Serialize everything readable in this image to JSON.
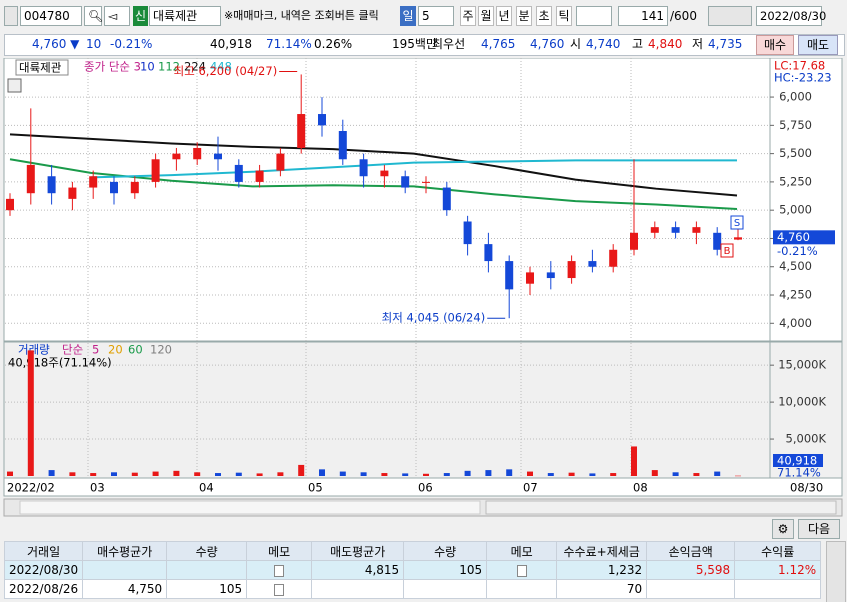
{
  "toolbar": {
    "code": "004780",
    "badge": "신",
    "name": "대륙제관",
    "notice": "※매매마크, 내역은 조회버튼 클릭",
    "period": "일",
    "period_n": "5",
    "units": [
      "주",
      "월",
      "년",
      "분",
      "초",
      "틱"
    ],
    "count": "141",
    "count_max": "/600",
    "date": "2022/08/30"
  },
  "quote": {
    "price": "4,760 ▼",
    "change": "10",
    "change_pct": "-0.21%",
    "volume": "40,918",
    "volume_pct": "71.14%",
    "turnover": "0.26%",
    "amount": "195백만",
    "best": "최우선",
    "ask": "4,765",
    "bid": "4,760",
    "open_label": "시",
    "open": "4,740",
    "high_label": "고",
    "high": "4,840",
    "low_label": "저",
    "low": "4,735",
    "buy": "매수",
    "sell": "매도"
  },
  "price_chart": {
    "title": "대륙제관",
    "legend": [
      {
        "text": "종가 단순 3",
        "color": "#c0208a"
      },
      {
        "text": "10",
        "color": "#1030c8"
      },
      {
        "text": "112",
        "color": "#1a9a4a"
      },
      {
        "text": "224",
        "color": "#111111"
      },
      {
        "text": "448",
        "color": "#20b8d0"
      }
    ],
    "ylim": [
      3870,
      6310
    ],
    "yticks": [
      {
        "value": 4000,
        "label": "4,000"
      },
      {
        "value": 4250,
        "label": "4,250"
      },
      {
        "value": 4500,
        "label": "4,500"
      },
      {
        "value": 4750,
        "label": "4,750"
      },
      {
        "value": 5000,
        "label": "5,000"
      },
      {
        "value": 5250,
        "label": "5,250"
      },
      {
        "value": 5500,
        "label": "5,500"
      },
      {
        "value": 5750,
        "label": "5,750"
      },
      {
        "value": 6000,
        "label": "6,000"
      }
    ],
    "candles": [
      [
        5000,
        5150,
        4950,
        5100
      ],
      [
        5150,
        5900,
        5050,
        5400
      ],
      [
        5300,
        5400,
        5050,
        5150
      ],
      [
        5100,
        5250,
        5000,
        5200
      ],
      [
        5200,
        5350,
        5100,
        5300
      ],
      [
        5250,
        5300,
        5050,
        5150
      ],
      [
        5150,
        5300,
        5100,
        5250
      ],
      [
        5250,
        5500,
        5200,
        5450
      ],
      [
        5450,
        5550,
        5350,
        5500
      ],
      [
        5450,
        5600,
        5400,
        5550
      ],
      [
        5500,
        5650,
        5350,
        5450
      ],
      [
        5400,
        5450,
        5200,
        5250
      ],
      [
        5250,
        5400,
        5200,
        5350
      ],
      [
        5350,
        5550,
        5300,
        5500
      ],
      [
        5550,
        6200,
        5500,
        5850
      ],
      [
        5850,
        6000,
        5650,
        5750
      ],
      [
        5700,
        5800,
        5400,
        5450
      ],
      [
        5450,
        5500,
        5200,
        5300
      ],
      [
        5300,
        5400,
        5200,
        5350
      ],
      [
        5300,
        5350,
        5150,
        5200
      ],
      [
        5250,
        5300,
        5150,
        5250
      ],
      [
        5200,
        5250,
        4950,
        5000
      ],
      [
        4900,
        4950,
        4600,
        4700
      ],
      [
        4700,
        4800,
        4450,
        4550
      ],
      [
        4550,
        4600,
        4045,
        4300
      ],
      [
        4350,
        4500,
        4250,
        4450
      ],
      [
        4450,
        4550,
        4300,
        4400
      ],
      [
        4400,
        4600,
        4350,
        4550
      ],
      [
        4550,
        4650,
        4450,
        4500
      ],
      [
        4500,
        4700,
        4450,
        4650
      ],
      [
        4650,
        5450,
        4600,
        4800
      ],
      [
        4800,
        4900,
        4750,
        4850
      ],
      [
        4850,
        4900,
        4750,
        4800
      ],
      [
        4800,
        4900,
        4700,
        4850
      ],
      [
        4800,
        4850,
        4600,
        4650
      ],
      [
        4740,
        4840,
        4735,
        4760
      ]
    ],
    "ma": [
      {
        "color": "#111111",
        "values": [
          5670,
          5630,
          5590,
          5560,
          5540,
          5500,
          5390,
          5270,
          5190,
          5130
        ]
      },
      {
        "color": "#1a9a4a",
        "values": [
          5450,
          5330,
          5260,
          5210,
          5220,
          5210,
          5140,
          5080,
          5050,
          5010
        ]
      },
      {
        "color": "#20b8d0",
        "values": [
          null,
          5290,
          5310,
          5340,
          5380,
          5420,
          5430,
          5440,
          5440,
          5440
        ]
      }
    ],
    "high_note": "최고 6,200 (04/27)",
    "low_note": "최저 4,045 (06/24)",
    "lc": "LC:17.68",
    "hc": "HC:-23.23",
    "last_price": "4,760",
    "last_change": "-0.21%",
    "sell_mark": "S",
    "buy_mark": "B"
  },
  "volume_chart": {
    "title": "거래량",
    "legend": [
      {
        "text": "단순",
        "color": "#c0208a"
      },
      {
        "text": "5",
        "color": "#c0208a"
      },
      {
        "text": "20",
        "color": "#e0a000"
      },
      {
        "text": "60",
        "color": "#1a9a4a"
      },
      {
        "text": "120",
        "color": "#808080"
      }
    ],
    "note": "40,918주(71.14%)",
    "ylim": [
      0,
      18000
    ],
    "yticks": [
      {
        "value": 5000,
        "label": "5,000K"
      },
      {
        "value": 10000,
        "label": "10,000K"
      },
      {
        "value": 15000,
        "label": "15,000K"
      }
    ],
    "values": [
      600,
      17000,
      800,
      500,
      400,
      500,
      450,
      600,
      700,
      500,
      400,
      450,
      350,
      500,
      1500,
      900,
      600,
      500,
      400,
      350,
      300,
      400,
      700,
      800,
      900,
      600,
      400,
      450,
      350,
      400,
      4000,
      800,
      500,
      400,
      600,
      40.918
    ],
    "last_label": "40,918",
    "last_pct": "71.14%"
  },
  "x_labels": [
    "2022/02",
    "03",
    "04",
    "05",
    "06",
    "07",
    "08"
  ],
  "x_end": "08/30",
  "next": "다음",
  "table": {
    "headers": [
      "거래일",
      "매수평균가",
      "수량",
      "메모",
      "매도평균가",
      "수량",
      "메모",
      "수수료+제세금",
      "손익금액",
      "수익률"
    ],
    "rows": [
      [
        "2022/08/30",
        null,
        null,
        null,
        "4,815",
        "105",
        null,
        "1,232",
        "5,598",
        "1.12%"
      ],
      [
        "2022/08/26",
        "4,750",
        "105",
        null,
        null,
        null,
        null,
        "70",
        null,
        null
      ]
    ]
  }
}
